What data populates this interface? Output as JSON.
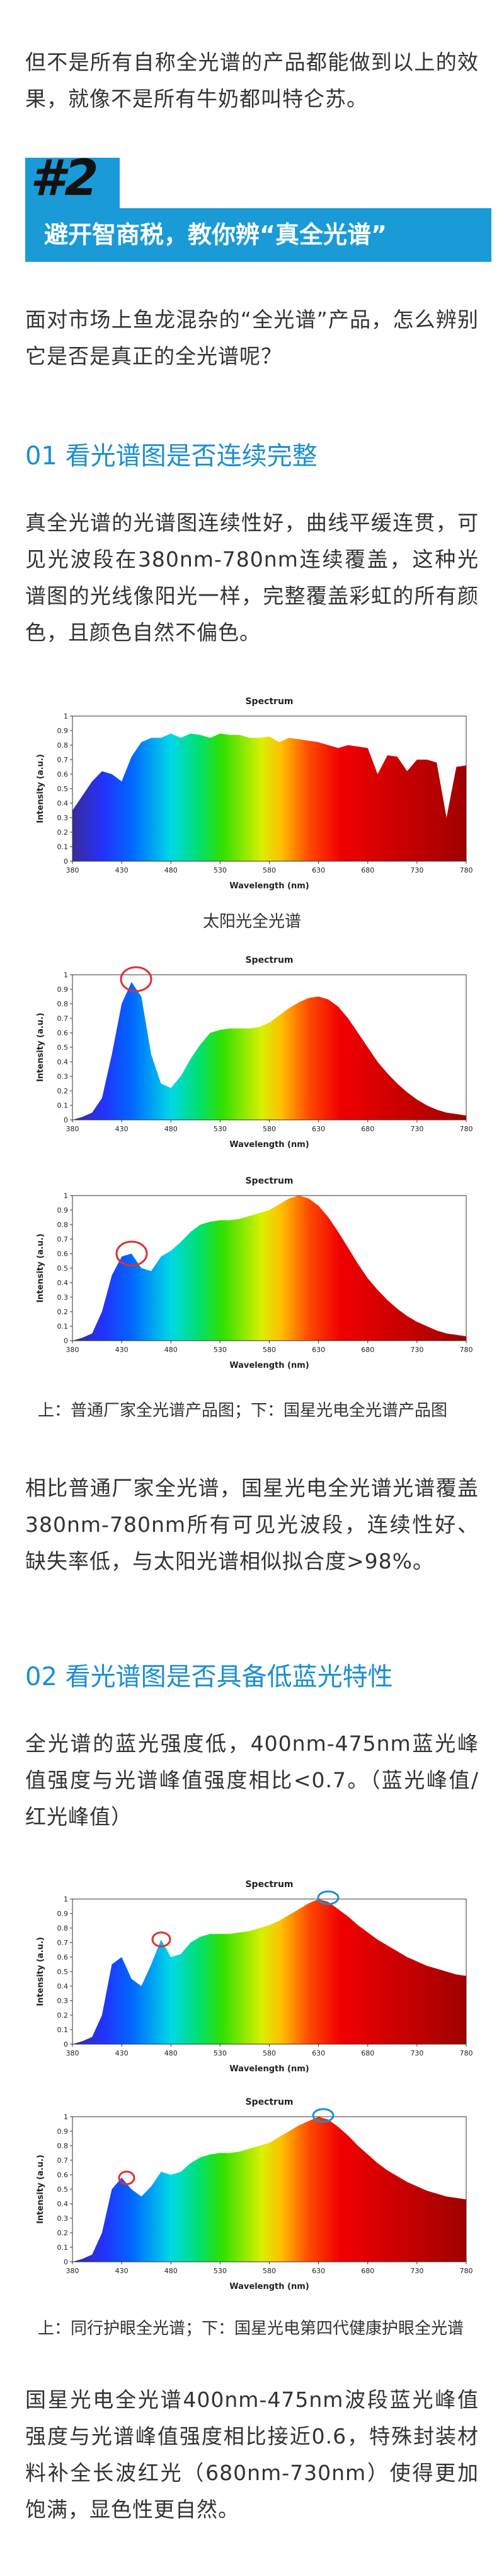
{
  "paragraphs": [
    "但不是所有自称全光谱的产品都能做到以上的效果，就像不是所有牛奶都叫特仑苏。",
    "面对市场上鱼龙混杂的“全光谱”产品，怎么辨别它是否是真正的全光谱呢？",
    "真全光谱的光谱图连续性好，曲线平缓连贯，可见光波段在380nm-780nm连续覆盖，这种光谱图的光线像阳光一样，完整覆盖彩虹的所有颜色，且颜色自然不偏色。",
    "相比普通厂家全光谱，国星光电全光谱光谱覆盖380nm-780nm所有可见光波段，连续性好、缺失率低，与太阳光谱相似拟合度>98%。",
    "全光谱的蓝光强度低，400nm-475nm蓝光峰值强度与光谱峰值强度相比<0.7。（蓝光峰值/红光峰值）",
    "国星光电全光谱400nm-475nm波段蓝光峰值强度与光谱峰值强度相比接近0.6，特殊封装材料补全长波红光（680nm-730nm）使得更加饱满，显色性更自然。"
  ],
  "section_badge": "#2",
  "section_title": "避开智商税，教你辨“真全光谱”",
  "headings": [
    "01 看光谱图是否连续完整",
    "02 看光谱图是否具备低蓝光特性"
  ],
  "captions": [
    "太阳光全光谱",
    "上：普通厂家全光谱产品图；下：国星光电全光谱产品图",
    "上：同行护眼全光谱；下：国星光电第四代健康护眼全光谱"
  ],
  "figures": [
    {
      "type": "area",
      "title": "Spectrum",
      "x_label": "Wavelength (nm)",
      "y_label": "Intensity (a.u.)",
      "xlim": [
        380,
        780
      ],
      "ylim": [
        0,
        1
      ],
      "xticks": [
        380,
        430,
        480,
        530,
        580,
        630,
        680,
        730,
        780
      ],
      "yticks": [
        0,
        0.1,
        0.2,
        0.3,
        0.4,
        0.5,
        0.6,
        0.7,
        0.8,
        0.9,
        1
      ],
      "x": [
        380,
        390,
        400,
        410,
        420,
        430,
        440,
        450,
        460,
        470,
        480,
        490,
        500,
        510,
        520,
        530,
        540,
        550,
        560,
        570,
        580,
        590,
        600,
        610,
        620,
        630,
        640,
        650,
        660,
        670,
        680,
        690,
        700,
        710,
        720,
        730,
        740,
        750,
        760,
        770,
        780
      ],
      "values": [
        0.35,
        0.45,
        0.55,
        0.62,
        0.6,
        0.55,
        0.72,
        0.82,
        0.85,
        0.85,
        0.88,
        0.85,
        0.88,
        0.87,
        0.85,
        0.88,
        0.87,
        0.87,
        0.85,
        0.85,
        0.86,
        0.82,
        0.85,
        0.84,
        0.83,
        0.82,
        0.8,
        0.78,
        0.8,
        0.79,
        0.78,
        0.6,
        0.73,
        0.72,
        0.62,
        0.7,
        0.7,
        0.68,
        0.3,
        0.65,
        0.66
      ]
    },
    {
      "type": "area",
      "title": "Spectrum",
      "x_label": "Wavelength (nm)",
      "y_label": "Intensity (a.u.)",
      "xlim": [
        380,
        780
      ],
      "ylim": [
        0,
        1
      ],
      "xticks": [
        380,
        430,
        480,
        530,
        580,
        630,
        680,
        730,
        780
      ],
      "yticks": [
        0,
        0.1,
        0.2,
        0.3,
        0.4,
        0.5,
        0.6,
        0.7,
        0.8,
        0.9,
        1
      ],
      "x": [
        380,
        390,
        400,
        410,
        420,
        430,
        440,
        450,
        460,
        470,
        480,
        490,
        500,
        510,
        520,
        530,
        540,
        550,
        560,
        570,
        580,
        590,
        600,
        610,
        620,
        630,
        640,
        650,
        660,
        670,
        680,
        690,
        700,
        710,
        720,
        730,
        740,
        750,
        760,
        770,
        780
      ],
      "values": [
        0,
        0.02,
        0.05,
        0.15,
        0.45,
        0.8,
        0.95,
        0.85,
        0.45,
        0.25,
        0.22,
        0.3,
        0.42,
        0.52,
        0.6,
        0.62,
        0.63,
        0.63,
        0.63,
        0.64,
        0.67,
        0.72,
        0.77,
        0.81,
        0.84,
        0.85,
        0.83,
        0.78,
        0.7,
        0.6,
        0.5,
        0.4,
        0.32,
        0.25,
        0.19,
        0.14,
        0.1,
        0.07,
        0.05,
        0.04,
        0.03
      ]
    },
    {
      "type": "area",
      "title": "Spectrum",
      "x_label": "Wavelength (nm)",
      "y_label": "Intensity (a.u.)",
      "xlim": [
        380,
        780
      ],
      "ylim": [
        0,
        1
      ],
      "xticks": [
        380,
        430,
        480,
        530,
        580,
        630,
        680,
        730,
        780
      ],
      "yticks": [
        0,
        0.1,
        0.2,
        0.3,
        0.4,
        0.5,
        0.6,
        0.7,
        0.8,
        0.9,
        1
      ],
      "x": [
        380,
        390,
        400,
        410,
        420,
        430,
        440,
        450,
        460,
        470,
        480,
        490,
        500,
        510,
        520,
        530,
        540,
        550,
        560,
        570,
        580,
        590,
        600,
        610,
        620,
        630,
        640,
        650,
        660,
        670,
        680,
        690,
        700,
        710,
        720,
        730,
        740,
        750,
        760,
        770,
        780
      ],
      "values": [
        0,
        0.02,
        0.05,
        0.2,
        0.45,
        0.58,
        0.6,
        0.5,
        0.48,
        0.58,
        0.62,
        0.68,
        0.75,
        0.8,
        0.82,
        0.83,
        0.83,
        0.84,
        0.86,
        0.88,
        0.9,
        0.94,
        0.98,
        1,
        0.98,
        0.93,
        0.85,
        0.75,
        0.64,
        0.53,
        0.43,
        0.35,
        0.28,
        0.22,
        0.17,
        0.13,
        0.1,
        0.07,
        0.05,
        0.04,
        0.03
      ]
    },
    {
      "type": "area",
      "title": "Spectrum",
      "x_label": "Wavelength (nm)",
      "y_label": "Intensity (a.u.)",
      "xlim": [
        380,
        780
      ],
      "ylim": [
        0,
        1
      ],
      "xticks": [
        380,
        430,
        480,
        530,
        580,
        630,
        680,
        730,
        780
      ],
      "yticks": [
        0,
        0.1,
        0.2,
        0.3,
        0.4,
        0.5,
        0.6,
        0.7,
        0.8,
        0.9,
        1
      ],
      "x": [
        380,
        390,
        400,
        410,
        420,
        430,
        440,
        450,
        460,
        470,
        480,
        490,
        500,
        510,
        520,
        530,
        540,
        550,
        560,
        570,
        580,
        590,
        600,
        610,
        620,
        630,
        640,
        650,
        660,
        670,
        680,
        690,
        700,
        710,
        720,
        730,
        740,
        750,
        760,
        770,
        780
      ],
      "values": [
        0,
        0.02,
        0.05,
        0.2,
        0.55,
        0.6,
        0.45,
        0.4,
        0.55,
        0.72,
        0.6,
        0.62,
        0.7,
        0.74,
        0.76,
        0.76,
        0.76,
        0.77,
        0.78,
        0.8,
        0.82,
        0.85,
        0.89,
        0.93,
        0.97,
        1,
        0.98,
        0.93,
        0.88,
        0.82,
        0.77,
        0.72,
        0.68,
        0.64,
        0.6,
        0.57,
        0.54,
        0.52,
        0.5,
        0.48,
        0.47
      ]
    },
    {
      "type": "area",
      "title": "Spectrum",
      "x_label": "Wavelength (nm)",
      "y_label": "Intensity (a.u.)",
      "xlim": [
        380,
        780
      ],
      "ylim": [
        0,
        1
      ],
      "xticks": [
        380,
        430,
        480,
        530,
        580,
        630,
        680,
        730,
        780
      ],
      "yticks": [
        0,
        0.1,
        0.2,
        0.3,
        0.4,
        0.5,
        0.6,
        0.7,
        0.8,
        0.9,
        1
      ],
      "x": [
        380,
        390,
        400,
        410,
        420,
        430,
        440,
        450,
        460,
        470,
        480,
        490,
        500,
        510,
        520,
        530,
        540,
        550,
        560,
        570,
        580,
        590,
        600,
        610,
        620,
        630,
        640,
        650,
        660,
        670,
        680,
        690,
        700,
        710,
        720,
        730,
        740,
        750,
        760,
        770,
        780
      ],
      "values": [
        0,
        0.02,
        0.05,
        0.2,
        0.5,
        0.58,
        0.5,
        0.45,
        0.52,
        0.62,
        0.6,
        0.62,
        0.68,
        0.72,
        0.74,
        0.75,
        0.75,
        0.76,
        0.78,
        0.8,
        0.82,
        0.86,
        0.9,
        0.94,
        0.97,
        1,
        0.98,
        0.93,
        0.87,
        0.8,
        0.74,
        0.68,
        0.63,
        0.59,
        0.55,
        0.52,
        0.49,
        0.47,
        0.45,
        0.44,
        0.43
      ]
    }
  ]
}
